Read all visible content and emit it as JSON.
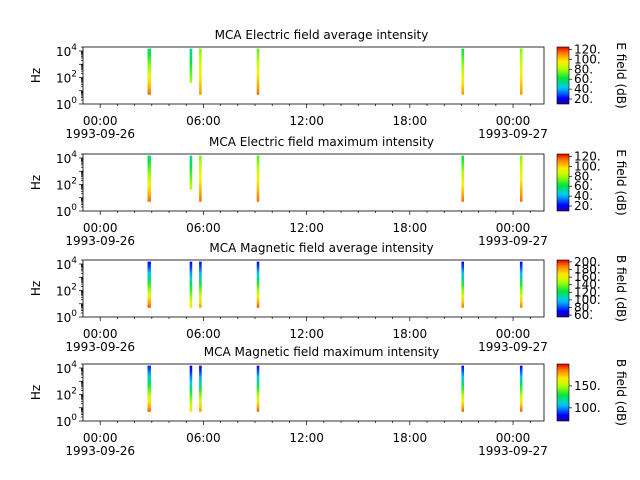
{
  "chart_data": [
    {
      "type": "heatmap",
      "title": "MCA  Electric field average intensity",
      "ylabel": "Hz",
      "yscale": "log",
      "ylim": [
        1,
        20000
      ],
      "y_ticks": [
        {
          "value": 1,
          "exp": "0"
        },
        {
          "value": 100,
          "exp": "2"
        },
        {
          "value": 10000,
          "exp": "4"
        }
      ],
      "x_ticks": [
        {
          "hour": 0,
          "label": "00:00",
          "date": "1993-09-26"
        },
        {
          "hour": 6,
          "label": "06:00",
          "date": ""
        },
        {
          "hour": 12,
          "label": "12:00",
          "date": ""
        },
        {
          "hour": 18,
          "label": "18:00",
          "date": ""
        },
        {
          "hour": 24,
          "label": "00:00",
          "date": "1993-09-27"
        }
      ],
      "xlim_hours": [
        -1,
        25.8
      ],
      "colorbar": {
        "label": "E field (dB)",
        "range": [
          10,
          125
        ],
        "ticks": [
          "20.",
          "40.",
          "60.",
          "80.",
          "100.",
          "120."
        ],
        "tick_values": [
          20,
          40,
          60,
          80,
          100,
          120
        ]
      },
      "stripes": [
        {
          "start_hour": 2.75,
          "end_hour": 2.95,
          "freq_min": 5,
          "freq_max": 15000,
          "low_db": 115,
          "high_db": 55
        },
        {
          "start_hour": 5.2,
          "end_hour": 5.35,
          "freq_min": 40,
          "freq_max": 15000,
          "low_db": 80,
          "high_db": 50
        },
        {
          "start_hour": 5.75,
          "end_hour": 5.9,
          "freq_min": 5,
          "freq_max": 15000,
          "low_db": 110,
          "high_db": 75
        },
        {
          "start_hour": 9.1,
          "end_hour": 9.25,
          "freq_min": 5,
          "freq_max": 15000,
          "low_db": 115,
          "high_db": 70
        },
        {
          "start_hour": 21.0,
          "end_hour": 21.15,
          "freq_min": 5,
          "freq_max": 15000,
          "low_db": 110,
          "high_db": 60
        },
        {
          "start_hour": 24.4,
          "end_hour": 24.55,
          "freq_min": 5,
          "freq_max": 15000,
          "low_db": 110,
          "high_db": 75
        }
      ]
    },
    {
      "type": "heatmap",
      "title": "MCA  Electric field maximum intensity",
      "ylabel": "Hz",
      "yscale": "log",
      "ylim": [
        1,
        20000
      ],
      "y_ticks": [
        {
          "value": 1,
          "exp": "0"
        },
        {
          "value": 100,
          "exp": "2"
        },
        {
          "value": 10000,
          "exp": "4"
        }
      ],
      "x_ticks": [
        {
          "hour": 0,
          "label": "00:00",
          "date": "1993-09-26"
        },
        {
          "hour": 6,
          "label": "06:00",
          "date": ""
        },
        {
          "hour": 12,
          "label": "12:00",
          "date": ""
        },
        {
          "hour": 18,
          "label": "18:00",
          "date": ""
        },
        {
          "hour": 24,
          "label": "00:00",
          "date": "1993-09-27"
        }
      ],
      "xlim_hours": [
        -1,
        25.8
      ],
      "colorbar": {
        "label": "E field (dB)",
        "range": [
          10,
          125
        ],
        "ticks": [
          "20.",
          "40.",
          "60.",
          "80.",
          "100.",
          "120."
        ],
        "tick_values": [
          20,
          40,
          60,
          80,
          100,
          120
        ]
      },
      "stripes": [
        {
          "start_hour": 2.75,
          "end_hour": 2.95,
          "freq_min": 5,
          "freq_max": 15000,
          "low_db": 115,
          "high_db": 55
        },
        {
          "start_hour": 5.2,
          "end_hour": 5.35,
          "freq_min": 40,
          "freq_max": 15000,
          "low_db": 85,
          "high_db": 50
        },
        {
          "start_hour": 5.75,
          "end_hour": 5.9,
          "freq_min": 5,
          "freq_max": 15000,
          "low_db": 115,
          "high_db": 75
        },
        {
          "start_hour": 9.1,
          "end_hour": 9.25,
          "freq_min": 5,
          "freq_max": 15000,
          "low_db": 115,
          "high_db": 70
        },
        {
          "start_hour": 21.0,
          "end_hour": 21.15,
          "freq_min": 5,
          "freq_max": 15000,
          "low_db": 115,
          "high_db": 60
        },
        {
          "start_hour": 24.4,
          "end_hour": 24.55,
          "freq_min": 5,
          "freq_max": 15000,
          "low_db": 115,
          "high_db": 75
        }
      ]
    },
    {
      "type": "heatmap",
      "title": "MCA  Magnetic field average intensity",
      "ylabel": "Hz",
      "yscale": "log",
      "ylim": [
        1,
        20000
      ],
      "y_ticks": [
        {
          "value": 1,
          "exp": "0"
        },
        {
          "value": 100,
          "exp": "2"
        },
        {
          "value": 10000,
          "exp": "4"
        }
      ],
      "x_ticks": [
        {
          "hour": 0,
          "label": "00:00",
          "date": "1993-09-26"
        },
        {
          "hour": 6,
          "label": "06:00",
          "date": ""
        },
        {
          "hour": 12,
          "label": "12:00",
          "date": ""
        },
        {
          "hour": 18,
          "label": "18:00",
          "date": ""
        },
        {
          "hour": 24,
          "label": "00:00",
          "date": "1993-09-27"
        }
      ],
      "xlim_hours": [
        -1,
        25.8
      ],
      "colorbar": {
        "label": "B field (dB)",
        "range": [
          55,
          205
        ],
        "ticks": [
          "60.",
          "80.",
          "100.",
          "120.",
          "140.",
          "160.",
          "180.",
          "200."
        ],
        "tick_values": [
          60,
          80,
          100,
          120,
          140,
          160,
          180,
          200
        ]
      },
      "stripes": [
        {
          "start_hour": 2.75,
          "end_hour": 2.95,
          "freq_min": 5,
          "freq_max": 15000,
          "low_db": 195,
          "high_db": 65
        },
        {
          "start_hour": 5.2,
          "end_hour": 5.35,
          "freq_min": 5,
          "freq_max": 15000,
          "low_db": 170,
          "high_db": 65
        },
        {
          "start_hour": 5.75,
          "end_hour": 5.9,
          "freq_min": 5,
          "freq_max": 15000,
          "low_db": 185,
          "high_db": 65
        },
        {
          "start_hour": 9.1,
          "end_hour": 9.25,
          "freq_min": 5,
          "freq_max": 15000,
          "low_db": 195,
          "high_db": 65
        },
        {
          "start_hour": 21.0,
          "end_hour": 21.15,
          "freq_min": 5,
          "freq_max": 15000,
          "low_db": 190,
          "high_db": 65
        },
        {
          "start_hour": 24.4,
          "end_hour": 24.55,
          "freq_min": 5,
          "freq_max": 15000,
          "low_db": 190,
          "high_db": 65
        }
      ]
    },
    {
      "type": "heatmap",
      "title": "MCA  Magnetic field maximum intensity",
      "ylabel": "Hz",
      "yscale": "log",
      "ylim": [
        1,
        20000
      ],
      "y_ticks": [
        {
          "value": 1,
          "exp": "0"
        },
        {
          "value": 100,
          "exp": "2"
        },
        {
          "value": 10000,
          "exp": "4"
        }
      ],
      "x_ticks": [
        {
          "hour": 0,
          "label": "00:00",
          "date": "1993-09-26"
        },
        {
          "hour": 6,
          "label": "06:00",
          "date": ""
        },
        {
          "hour": 12,
          "label": "12:00",
          "date": ""
        },
        {
          "hour": 18,
          "label": "18:00",
          "date": ""
        },
        {
          "hour": 24,
          "label": "00:00",
          "date": "1993-09-27"
        }
      ],
      "xlim_hours": [
        -1,
        25.8
      ],
      "colorbar": {
        "label": "B field (dB)",
        "range": [
          70,
          200
        ],
        "ticks": [
          "100.",
          "150."
        ],
        "tick_values": [
          100,
          150
        ]
      },
      "stripes": [
        {
          "start_hour": 2.75,
          "end_hour": 2.95,
          "freq_min": 5,
          "freq_max": 15000,
          "low_db": 190,
          "high_db": 85
        },
        {
          "start_hour": 5.2,
          "end_hour": 5.35,
          "freq_min": 5,
          "freq_max": 15000,
          "low_db": 170,
          "high_db": 75
        },
        {
          "start_hour": 5.75,
          "end_hour": 5.9,
          "freq_min": 5,
          "freq_max": 15000,
          "low_db": 185,
          "high_db": 75
        },
        {
          "start_hour": 9.1,
          "end_hour": 9.25,
          "freq_min": 5,
          "freq_max": 15000,
          "low_db": 190,
          "high_db": 80
        },
        {
          "start_hour": 21.0,
          "end_hour": 21.15,
          "freq_min": 5,
          "freq_max": 15000,
          "low_db": 190,
          "high_db": 80
        },
        {
          "start_hour": 24.4,
          "end_hour": 24.55,
          "freq_min": 5,
          "freq_max": 15000,
          "low_db": 190,
          "high_db": 80
        }
      ]
    }
  ]
}
